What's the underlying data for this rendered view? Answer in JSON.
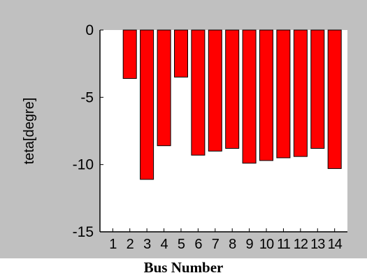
{
  "chart_data": {
    "type": "bar",
    "categories": [
      "1",
      "2",
      "3",
      "4",
      "5",
      "6",
      "7",
      "8",
      "9",
      "10",
      "11",
      "12",
      "13",
      "14"
    ],
    "values": [
      0,
      -3.6,
      -11.1,
      -8.6,
      -3.5,
      -9.3,
      -9.0,
      -8.8,
      -9.9,
      -9.7,
      -9.5,
      -9.4,
      -8.8,
      -10.3
    ],
    "title": "",
    "xlabel": "Bus Number",
    "ylabel": "teta[degre]",
    "ylim": [
      -15,
      0
    ],
    "yticks": [
      "0",
      "-5",
      "-10",
      "-15"
    ],
    "ytick_values": [
      0,
      -5,
      -10,
      -15
    ],
    "grid": false,
    "colors": {
      "figure_background": "#c0c0c0",
      "axes_background": "#ffffff",
      "bar_fill": "#ff0000",
      "bar_edge": "#000000",
      "axis": "#000000",
      "text": "#000000"
    }
  }
}
